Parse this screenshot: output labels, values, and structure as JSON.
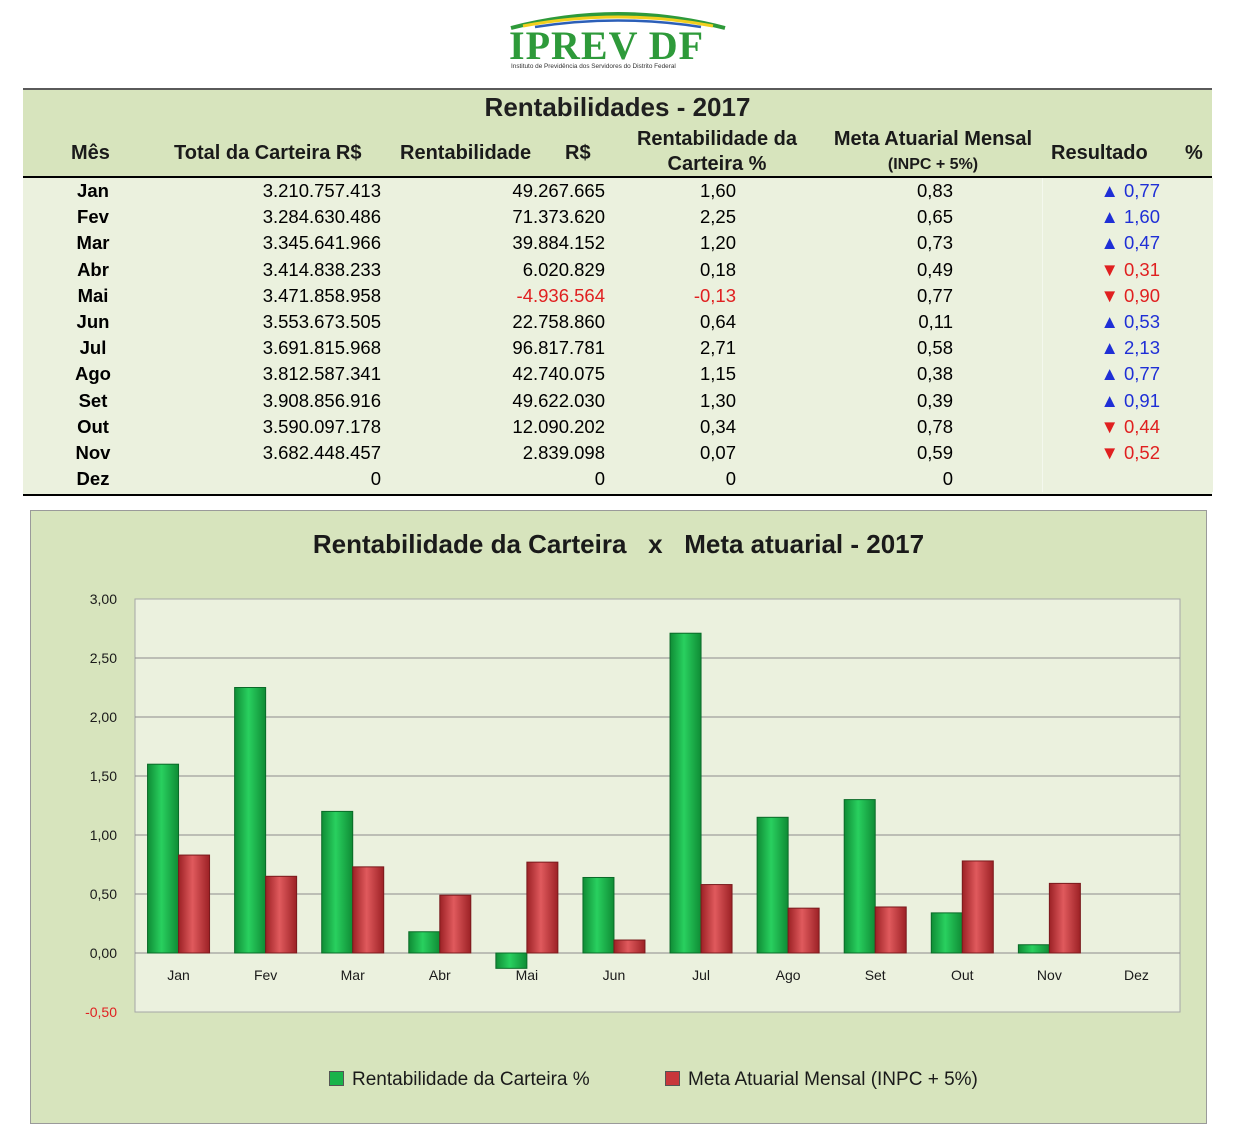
{
  "logo": {
    "name": "IPREV DF",
    "subtitle": "Instituto de Previdência dos Servidores do Distrito Federal"
  },
  "table": {
    "title": "Rentabilidades - 2017",
    "headers": {
      "mes": "Mês",
      "total": "Total da Carteira R$",
      "rentabilidade": "Rentabilidade",
      "rs": "R$",
      "rent_carteira_line1": "Rentabilidade da",
      "rent_carteira_line2": "Carteira %",
      "meta_line1": "Meta Atuarial Mensal",
      "meta_line2": "(INPC + 5%)",
      "resultado": "Resultado",
      "pct": "%"
    },
    "rows": [
      {
        "mes": "Jan",
        "total": "3.210.757.413",
        "rent": "49.267.665",
        "pct": "1,60",
        "meta": "0,83",
        "res": "▲ 0,77",
        "dir": "up"
      },
      {
        "mes": "Fev",
        "total": "3.284.630.486",
        "rent": "71.373.620",
        "pct": "2,25",
        "meta": "0,65",
        "res": "▲ 1,60",
        "dir": "up"
      },
      {
        "mes": "Mar",
        "total": "3.345.641.966",
        "rent": "39.884.152",
        "pct": "1,20",
        "meta": "0,73",
        "res": "▲ 0,47",
        "dir": "up"
      },
      {
        "mes": "Abr",
        "total": "3.414.838.233",
        "rent": "6.020.829",
        "pct": "0,18",
        "meta": "0,49",
        "res": "▼ 0,31",
        "dir": "down"
      },
      {
        "mes": "Mai",
        "total": "3.471.858.958",
        "rent": "-4.936.564",
        "pct": "-0,13",
        "meta": "0,77",
        "res": "▼ 0,90",
        "dir": "down"
      },
      {
        "mes": "Jun",
        "total": "3.553.673.505",
        "rent": "22.758.860",
        "pct": "0,64",
        "meta": "0,11",
        "res": "▲ 0,53",
        "dir": "up"
      },
      {
        "mes": "Jul",
        "total": "3.691.815.968",
        "rent": "96.817.781",
        "pct": "2,71",
        "meta": "0,58",
        "res": "▲ 2,13",
        "dir": "up"
      },
      {
        "mes": "Ago",
        "total": "3.812.587.341",
        "rent": "42.740.075",
        "pct": "1,15",
        "meta": "0,38",
        "res": "▲ 0,77",
        "dir": "up"
      },
      {
        "mes": "Set",
        "total": "3.908.856.916",
        "rent": "49.622.030",
        "pct": "1,30",
        "meta": "0,39",
        "res": "▲ 0,91",
        "dir": "up"
      },
      {
        "mes": "Out",
        "total": "3.590.097.178",
        "rent": "12.090.202",
        "pct": "0,34",
        "meta": "0,78",
        "res": "▼ 0,44",
        "dir": "down"
      },
      {
        "mes": "Nov",
        "total": "3.682.448.457",
        "rent": "2.839.098",
        "pct": "0,07",
        "meta": "0,59",
        "res": "▼ 0,52",
        "dir": "down"
      },
      {
        "mes": "Dez",
        "total": "0",
        "rent": "0",
        "pct": "0",
        "meta": "0",
        "res": "",
        "dir": ""
      }
    ]
  },
  "colors": {
    "series_green": "#19b34a",
    "series_red": "#c8373b",
    "up_arrow": "#1f2fd6",
    "down_arrow": "#e02020",
    "header_bg": "#d7e4bd",
    "body_bg": "#ebf1de"
  },
  "chart_data": {
    "type": "bar",
    "title": "Rentabilidade da Carteira   x   Meta atuarial - 2017",
    "categories": [
      "Jan",
      "Fev",
      "Mar",
      "Abr",
      "Mai",
      "Jun",
      "Jul",
      "Ago",
      "Set",
      "Out",
      "Nov",
      "Dez"
    ],
    "series": [
      {
        "name": "Rentabilidade da Carteira %",
        "values": [
          1.6,
          2.25,
          1.2,
          0.18,
          -0.13,
          0.64,
          2.71,
          1.15,
          1.3,
          0.34,
          0.07,
          0
        ]
      },
      {
        "name": "Meta Atuarial Mensal  (INPC + 5%)",
        "values": [
          0.83,
          0.65,
          0.73,
          0.49,
          0.77,
          0.11,
          0.58,
          0.38,
          0.39,
          0.78,
          0.59,
          0
        ]
      }
    ],
    "yticks": [
      "3,00",
      "2,50",
      "2,00",
      "1,50",
      "1,00",
      "0,50",
      "0,00",
      "-0,50"
    ],
    "ylim": [
      -0.5,
      3.0
    ],
    "grid": true,
    "legend_position": "bottom"
  }
}
